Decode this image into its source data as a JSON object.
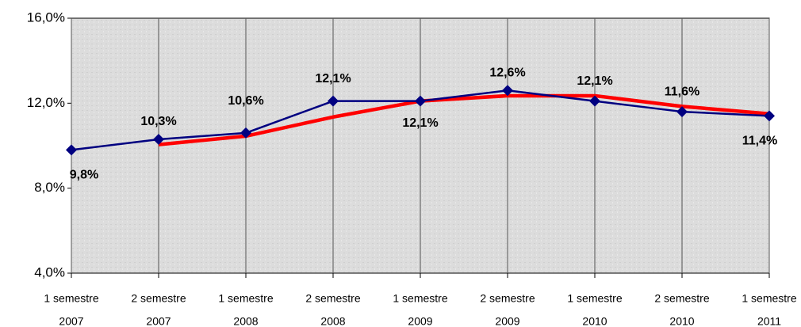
{
  "chart_data": {
    "type": "line",
    "categories": [
      [
        "1 semestre",
        "2007"
      ],
      [
        "2 semestre",
        "2007"
      ],
      [
        "1 semestre",
        "2008"
      ],
      [
        "2 semestre",
        "2008"
      ],
      [
        "1 semestre",
        "2009"
      ],
      [
        "2 semestre",
        "2009"
      ],
      [
        "1 semestre",
        "2010"
      ],
      [
        "2 semestre",
        "2010"
      ],
      [
        "1 semestre",
        "2011"
      ]
    ],
    "series": [
      {
        "color": "#000080",
        "values": [
          9.8,
          10.3,
          10.6,
          12.1,
          12.1,
          12.6,
          12.1,
          11.6,
          11.4
        ],
        "value_labels": [
          "9,8%",
          "10,3%",
          "10,6%",
          "12,1%",
          "12,1%",
          "12,6%",
          "12,1%",
          "11,6%",
          "11,4%"
        ]
      },
      {
        "color": "#ff0000",
        "values": [
          null,
          10.05,
          10.45,
          11.35,
          12.1,
          12.35,
          12.35,
          11.85,
          11.5
        ]
      }
    ],
    "ylim": [
      4,
      16
    ],
    "yticks": [
      {
        "value": 4,
        "label": "4,0%"
      },
      {
        "value": 8,
        "label": "8,0%"
      },
      {
        "value": 12,
        "label": "12,0%"
      },
      {
        "value": 16,
        "label": "16,0%"
      }
    ]
  }
}
